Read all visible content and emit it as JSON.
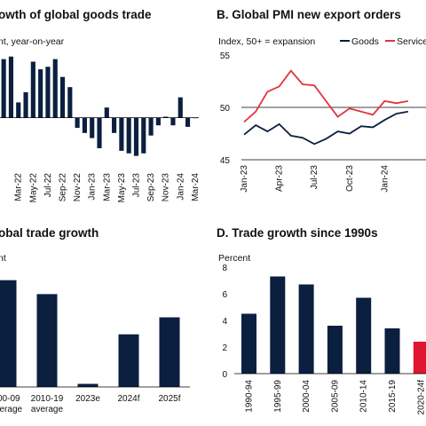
{
  "chart_data": [
    {
      "id": "A",
      "type": "bar",
      "title": "owth of global goods trade",
      "unit_label": "nt, year-on-year",
      "tick_labels": [
        "Mar-22",
        "May-22",
        "Jul-22",
        "Sep-22",
        "Nov-22",
        "Jan-23",
        "Mar-23",
        "May-23",
        "Jul-23",
        "Sep-23",
        "Nov-23",
        "Jan-24",
        "Mar-24"
      ],
      "x": [
        "Jan-22",
        "Feb-22",
        "Mar-22",
        "Apr-22",
        "May-22",
        "Jun-22",
        "Jul-22",
        "Aug-22",
        "Sep-22",
        "Oct-22",
        "Nov-22",
        "Dec-22",
        "Jan-23",
        "Feb-23",
        "Mar-23",
        "Apr-23",
        "May-23",
        "Jun-23",
        "Jul-23",
        "Aug-23",
        "Sep-23",
        "Oct-23",
        "Nov-23",
        "Dec-23",
        "Jan-24",
        "Feb-24",
        "Mar-24"
      ],
      "values": [
        11.5,
        12.0,
        3.0,
        5.0,
        11.0,
        9.5,
        10.0,
        11.5,
        8.0,
        6.0,
        -2.0,
        -3.0,
        -4.0,
        -6.0,
        2.0,
        -3.0,
        -6.5,
        -7.0,
        -7.5,
        -7.0,
        -3.5,
        -1.5,
        0.2,
        -1.5,
        4.0,
        -1.8,
        0
      ],
      "ylim": [
        -10,
        13
      ]
    },
    {
      "id": "B",
      "type": "line",
      "title": "B. Global PMI new export orders",
      "unit_label": "Index, 50+ = expansion",
      "tick_labels": [
        "Jan-23",
        "Apr-23",
        "Jul-23",
        "Oct-23",
        "Jan-24"
      ],
      "yticks": [
        "45",
        "50",
        "55"
      ],
      "ylim": [
        45,
        55
      ],
      "reference_line": 50,
      "series": [
        {
          "name": "Goods",
          "color": "#0b1f3f",
          "x": [
            "Jan-23",
            "Feb-23",
            "Mar-23",
            "Apr-23",
            "May-23",
            "Jun-23",
            "Jul-23",
            "Aug-23",
            "Sep-23",
            "Oct-23",
            "Nov-23",
            "Dec-23",
            "Jan-24",
            "Feb-24",
            "Mar-24"
          ],
          "values": [
            47.4,
            48.3,
            47.7,
            48.4,
            47.3,
            47.1,
            46.5,
            47.0,
            47.7,
            47.5,
            48.2,
            48.1,
            48.8,
            49.4,
            49.6
          ]
        },
        {
          "name": "Services",
          "color": "#e0353d",
          "x": [
            "Jan-23",
            "Feb-23",
            "Mar-23",
            "Apr-23",
            "May-23",
            "Jun-23",
            "Jul-23",
            "Aug-23",
            "Sep-23",
            "Oct-23",
            "Nov-23",
            "Dec-23",
            "Jan-24",
            "Feb-24",
            "Mar-24"
          ],
          "values": [
            48.6,
            49.6,
            51.5,
            52.0,
            53.5,
            52.2,
            52.1,
            50.6,
            49.1,
            49.9,
            49.6,
            49.3,
            50.6,
            50.4,
            50.6
          ]
        }
      ]
    },
    {
      "id": "C",
      "type": "bar",
      "title": "obal trade growth",
      "unit_label": "nt",
      "categories": [
        {
          "lines": [
            "000-09",
            "average"
          ]
        },
        {
          "lines": [
            "2010-19",
            "average"
          ]
        },
        {
          "lines": [
            "2023e"
          ]
        },
        {
          "lines": [
            "2024f"
          ]
        },
        {
          "lines": [
            "2025f"
          ]
        }
      ],
      "values": [
        6.9,
        6.0,
        0.2,
        3.4,
        4.5
      ],
      "ylim": [
        0,
        7.8
      ]
    },
    {
      "id": "D",
      "type": "bar",
      "title": "D. Trade growth since 1990s",
      "unit_label": "Percent",
      "categories": [
        "1990-94",
        "1995-99",
        "2000-04",
        "2005-09",
        "2010-14",
        "2015-19",
        "2020-24f"
      ],
      "values": [
        4.5,
        7.3,
        6.7,
        3.6,
        5.7,
        3.4,
        2.4
      ],
      "colors": [
        "#0b1f3f",
        "#0b1f3f",
        "#0b1f3f",
        "#0b1f3f",
        "#0b1f3f",
        "#0b1f3f",
        "#e0152e"
      ],
      "yticks": [
        "0",
        "2",
        "4",
        "6",
        "8"
      ],
      "ylim": [
        0,
        8
      ]
    }
  ]
}
